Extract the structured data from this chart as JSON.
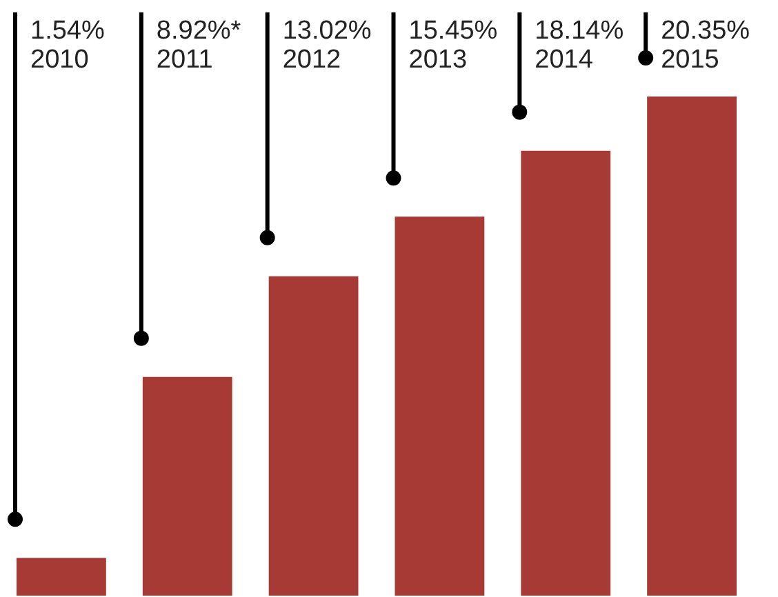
{
  "chart_data": {
    "type": "bar",
    "categories": [
      "2010",
      "2011",
      "2012",
      "2013",
      "2014",
      "2015"
    ],
    "values": [
      1.54,
      8.92,
      13.02,
      15.45,
      18.14,
      20.35
    ],
    "value_labels": [
      "1.54%",
      "8.92%*",
      "13.02%",
      "15.45%",
      "18.14%",
      "20.35%"
    ],
    "color": "#a83a36"
  }
}
